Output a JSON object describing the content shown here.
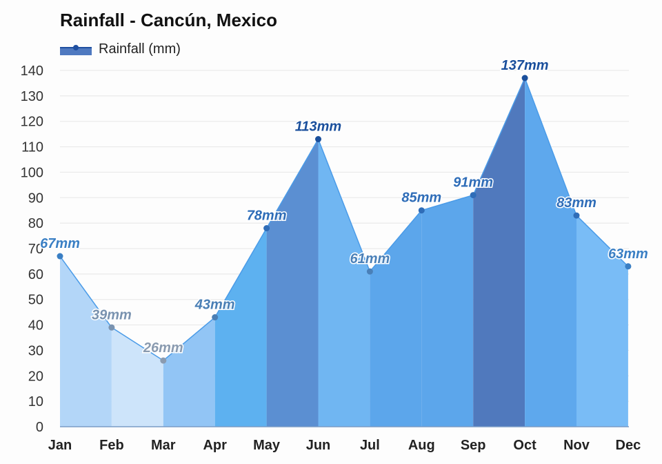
{
  "chart_data": {
    "type": "area",
    "title": "Rainfall - Cancún, Mexico",
    "legend": [
      "Rainfall (mm)"
    ],
    "legend_position": "top-left",
    "categories": [
      "Jan",
      "Feb",
      "Mar",
      "Apr",
      "May",
      "Jun",
      "Jul",
      "Aug",
      "Sep",
      "Oct",
      "Nov",
      "Dec"
    ],
    "values": [
      67,
      39,
      26,
      43,
      78,
      113,
      61,
      85,
      91,
      137,
      83,
      63
    ],
    "data_labels": [
      "67mm",
      "39mm",
      "26mm",
      "43mm",
      "78mm",
      "113mm",
      "61mm",
      "85mm",
      "91mm",
      "137mm",
      "83mm",
      "63mm"
    ],
    "segment_colors": [
      "#b3d6f8",
      "#cde4fa",
      "#92c5f5",
      "#5db1f0",
      "#5b8fd2",
      "#70b6f2",
      "#5ca6eb",
      "#5ca6eb",
      "#5079bd",
      "#5ea8ed",
      "#79bcf6"
    ],
    "label_colors": [
      "#3a7fc4",
      "#7a93b0",
      "#8a9bb0",
      "#4a7fb5",
      "#2f6db8",
      "#1a4f9c",
      "#4a80b8",
      "#2f6db8",
      "#2f6db8",
      "#1a4f9c",
      "#2f6db8",
      "#3a7fc4"
    ],
    "ylim": [
      0,
      140
    ],
    "yticks": [
      0,
      10,
      20,
      30,
      40,
      50,
      60,
      70,
      80,
      90,
      100,
      110,
      120,
      130,
      140
    ],
    "xlabel": "",
    "ylabel": "",
    "grid": true
  }
}
